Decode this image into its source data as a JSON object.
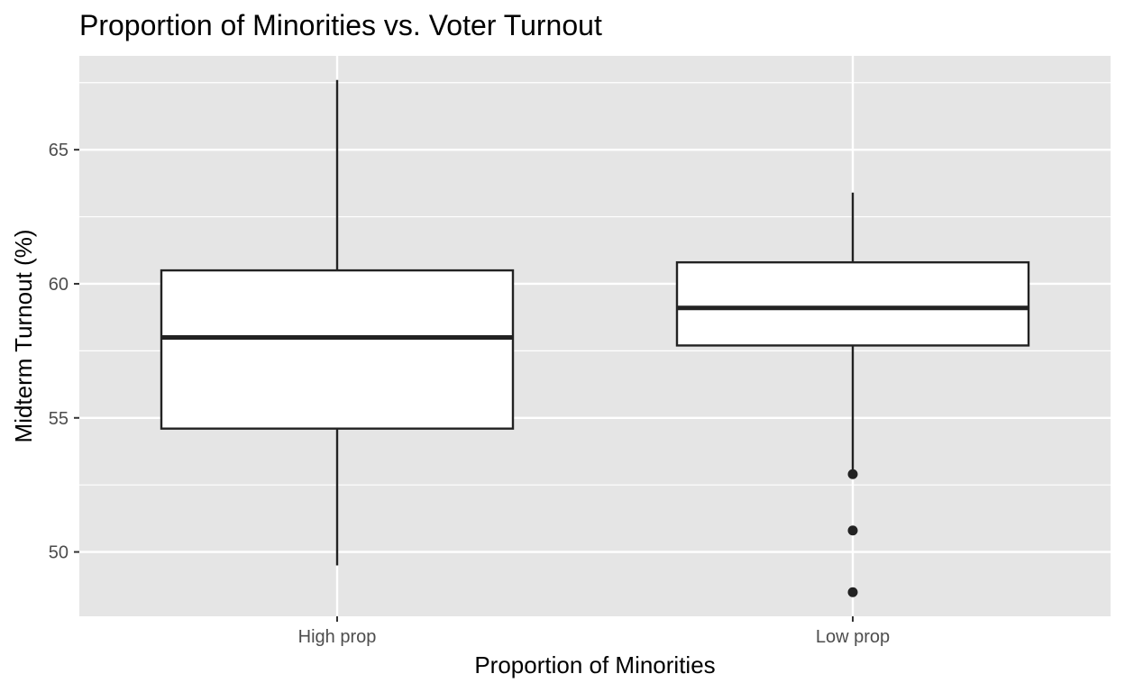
{
  "chart_data": {
    "type": "boxplot",
    "title": "Proportion of Minorities  vs. Voter Turnout",
    "xlabel": "Proportion of Minorities",
    "ylabel": "Midterm Turnout (%)",
    "categories": [
      "High prop",
      "Low prop"
    ],
    "ylim": [
      47.6,
      68.5
    ],
    "yticks": [
      50,
      55,
      60,
      65
    ],
    "grid": true,
    "legend": "none",
    "boxes": [
      {
        "category": "High prop",
        "whisker_low": 49.5,
        "q1": 54.6,
        "median": 58.0,
        "q3": 60.5,
        "whisker_high": 67.6,
        "outliers": []
      },
      {
        "category": "Low prop",
        "whisker_low": 52.9,
        "q1": 57.7,
        "median": 59.1,
        "q3": 60.8,
        "whisker_high": 63.4,
        "outliers": [
          52.9,
          50.8,
          48.5
        ]
      }
    ],
    "colors": {
      "panel": "#e5e5e5",
      "grid": "#ffffff",
      "box_fill": "#ffffff",
      "box_line": "#222222",
      "tick": "#333333"
    }
  }
}
